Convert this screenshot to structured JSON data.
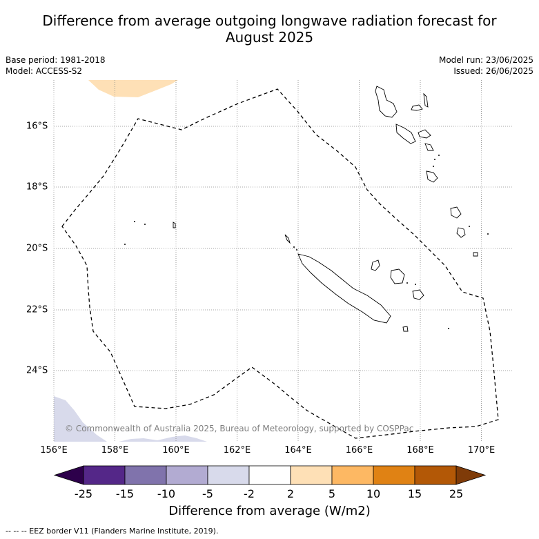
{
  "title_line1": "Difference from average outgoing longwave radiation forecast for",
  "title_line2": "August 2025",
  "base_period": "Base period: 1981-2018",
  "model": "Model: ACCESS-S2",
  "model_run": "Model run: 23/06/2025",
  "issued": "Issued: 26/06/2025",
  "lon_ticks": [
    "156°E",
    "158°E",
    "160°E",
    "162°E",
    "164°E",
    "166°E",
    "168°E",
    "170°E"
  ],
  "lat_ticks": [
    "16°S",
    "18°S",
    "20°S",
    "22°S",
    "24°S"
  ],
  "copyright": "© Commonwealth of Australia 2025, Bureau of Meteorology, supported by COSPPac",
  "colorbar": {
    "title": "Difference from average (W/m2)",
    "labels": [
      "-25",
      "-15",
      "-10",
      "-5",
      "-2",
      "2",
      "5",
      "10",
      "15",
      "25"
    ],
    "colors": [
      "#2d004b",
      "#542788",
      "#8073ac",
      "#b2abd2",
      "#d8daeb",
      "#ffffff",
      "#fee0b6",
      "#fdb863",
      "#e08214",
      "#b35806",
      "#7f3b08"
    ]
  },
  "footnote": "-- -- -- EEZ border V11 (Flanders Marine Institute, 2019)."
}
